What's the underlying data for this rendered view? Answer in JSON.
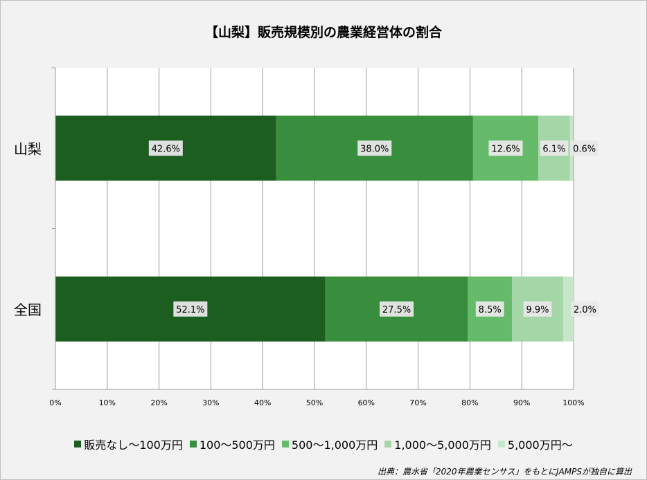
{
  "title": "【山梨】販売規模別の農業経営体の割合",
  "source": "出典：農水省「2020年農業センサス」をもとにJAMPSが独自に算出",
  "chart_data": {
    "type": "bar",
    "orientation": "horizontal",
    "stacked": true,
    "categories": [
      "山梨",
      "全国"
    ],
    "series": [
      {
        "name": "販売なし～100万円",
        "color": "#1b5e20",
        "values": [
          42.6,
          52.1
        ],
        "labels": [
          "42.6%",
          "52.1%"
        ]
      },
      {
        "name": "100～500万円",
        "color": "#388e3c",
        "values": [
          38.0,
          27.5
        ],
        "labels": [
          "38.0%",
          "27.5%"
        ]
      },
      {
        "name": "500～1,000万円",
        "color": "#66bb6a",
        "values": [
          12.6,
          8.5
        ],
        "labels": [
          "12.6%",
          "8.5%"
        ]
      },
      {
        "name": "1,000～5,000万円",
        "color": "#a5d6a7",
        "values": [
          6.1,
          9.9
        ],
        "labels": [
          "6.1%",
          "9.9%"
        ]
      },
      {
        "name": "5,000万円～",
        "color": "#c8e6c9",
        "values": [
          0.6,
          2.0
        ],
        "labels": [
          "0.6%",
          "2.0%"
        ]
      }
    ],
    "xticks": [
      "0%",
      "10%",
      "20%",
      "30%",
      "40%",
      "50%",
      "60%",
      "70%",
      "80%",
      "90%",
      "100%"
    ],
    "xlim": [
      0,
      100
    ],
    "grid": true,
    "legend_position": "bottom"
  }
}
